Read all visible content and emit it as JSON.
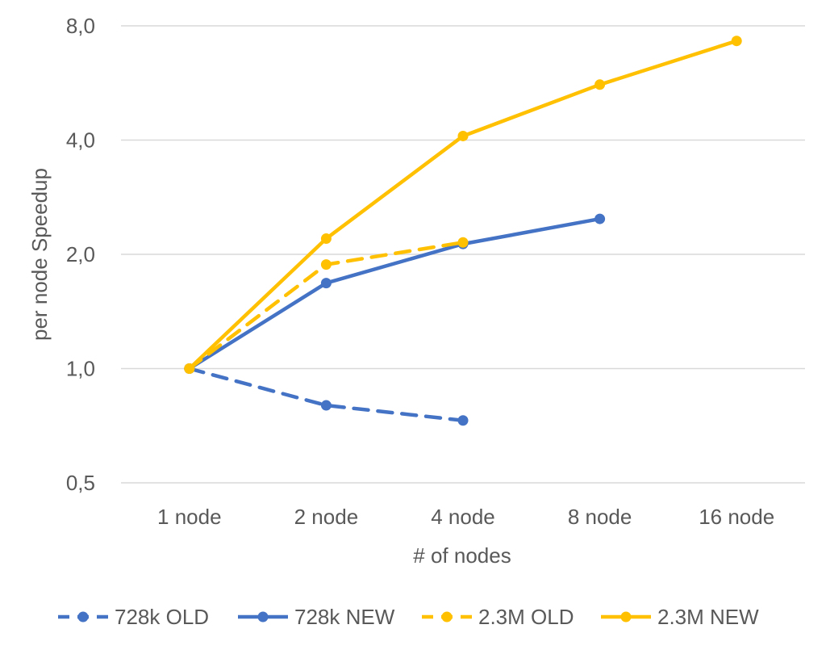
{
  "chart_data": {
    "type": "line",
    "title": "",
    "xlabel": "# of nodes",
    "ylabel": "per node Speedup",
    "y_scale": "log2",
    "ylim": [
      0.5,
      8.0
    ],
    "y_ticks": [
      "0,5",
      "1,0",
      "2,0",
      "4,0",
      "8,0"
    ],
    "y_tick_values": [
      0.5,
      1.0,
      2.0,
      4.0,
      8.0
    ],
    "categories": [
      "1 node",
      "2 node",
      "4 node",
      "8 node",
      "16 node"
    ],
    "grid": true,
    "legend_position": "bottom",
    "series": [
      {
        "name": "728k OLD",
        "color": "#4472C4",
        "dash": true,
        "values": [
          1.0,
          0.8,
          0.73,
          null,
          null
        ]
      },
      {
        "name": "728k NEW",
        "color": "#4472C4",
        "dash": false,
        "values": [
          1.0,
          1.68,
          2.13,
          2.48,
          null
        ]
      },
      {
        "name": "2.3M OLD",
        "color": "#FFC000",
        "dash": true,
        "values": [
          1.0,
          1.88,
          2.15,
          null,
          null
        ]
      },
      {
        "name": "2.3M NEW",
        "color": "#FFC000",
        "dash": false,
        "values": [
          1.0,
          2.2,
          4.1,
          5.6,
          7.3
        ]
      }
    ]
  }
}
